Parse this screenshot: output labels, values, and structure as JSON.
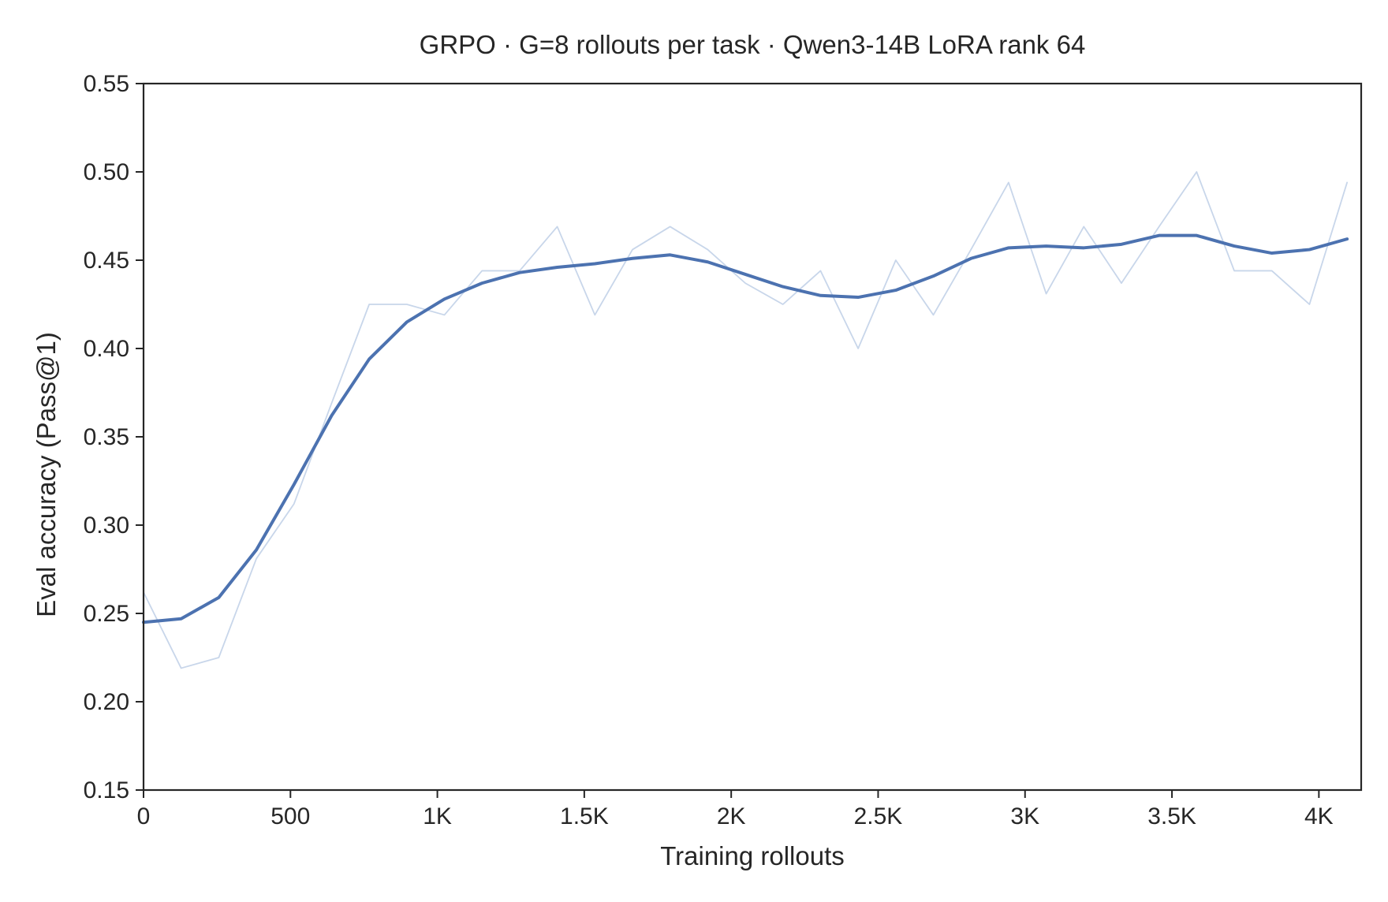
{
  "chart_data": {
    "type": "line",
    "title": "GRPO · G=8 rollouts per task · Qwen3-14B LoRA rank 64",
    "xlabel": "Training rollouts",
    "ylabel": "Eval accuracy (Pass@1)",
    "xlim": [
      0,
      4144
    ],
    "ylim": [
      0.15,
      0.55
    ],
    "grid": false,
    "legend": "none",
    "x_ticks": [
      0,
      500,
      1000,
      1500,
      2000,
      2500,
      3000,
      3500,
      4000
    ],
    "x_tick_labels": [
      "0",
      "500",
      "1K",
      "1.5K",
      "2K",
      "2.5K",
      "3K",
      "3.5K",
      "4K"
    ],
    "y_ticks": [
      0.15,
      0.2,
      0.25,
      0.3,
      0.35,
      0.4,
      0.45,
      0.5,
      0.55
    ],
    "y_tick_labels": [
      "0.15",
      "0.20",
      "0.25",
      "0.30",
      "0.35",
      "0.40",
      "0.45",
      "0.50",
      "0.55"
    ],
    "x": [
      0,
      128,
      256,
      384,
      512,
      640,
      768,
      896,
      1024,
      1152,
      1280,
      1408,
      1536,
      1664,
      1792,
      1920,
      2048,
      2176,
      2304,
      2432,
      2560,
      2688,
      2816,
      2944,
      3072,
      3200,
      3328,
      3456,
      3584,
      3712,
      3840,
      3968,
      4096
    ],
    "series": [
      {
        "role": "raw",
        "color": "#c8d6ea",
        "values": [
          0.262,
          0.219,
          0.225,
          0.281,
          0.312,
          0.369,
          0.425,
          0.425,
          0.419,
          0.444,
          0.444,
          0.469,
          0.419,
          0.456,
          0.469,
          0.456,
          0.437,
          0.425,
          0.444,
          0.4,
          0.45,
          0.419,
          0.456,
          0.494,
          0.431,
          0.469,
          0.437,
          0.469,
          0.5,
          0.444,
          0.444,
          0.425,
          0.494
        ]
      },
      {
        "role": "smoothed",
        "color": "#4c72b0",
        "values": [
          0.245,
          0.247,
          0.259,
          0.286,
          0.323,
          0.362,
          0.394,
          0.415,
          0.428,
          0.437,
          0.443,
          0.446,
          0.448,
          0.451,
          0.453,
          0.449,
          0.442,
          0.435,
          0.43,
          0.429,
          0.433,
          0.441,
          0.451,
          0.457,
          0.458,
          0.457,
          0.459,
          0.464,
          0.464,
          0.458,
          0.454,
          0.456,
          0.462
        ]
      }
    ]
  }
}
